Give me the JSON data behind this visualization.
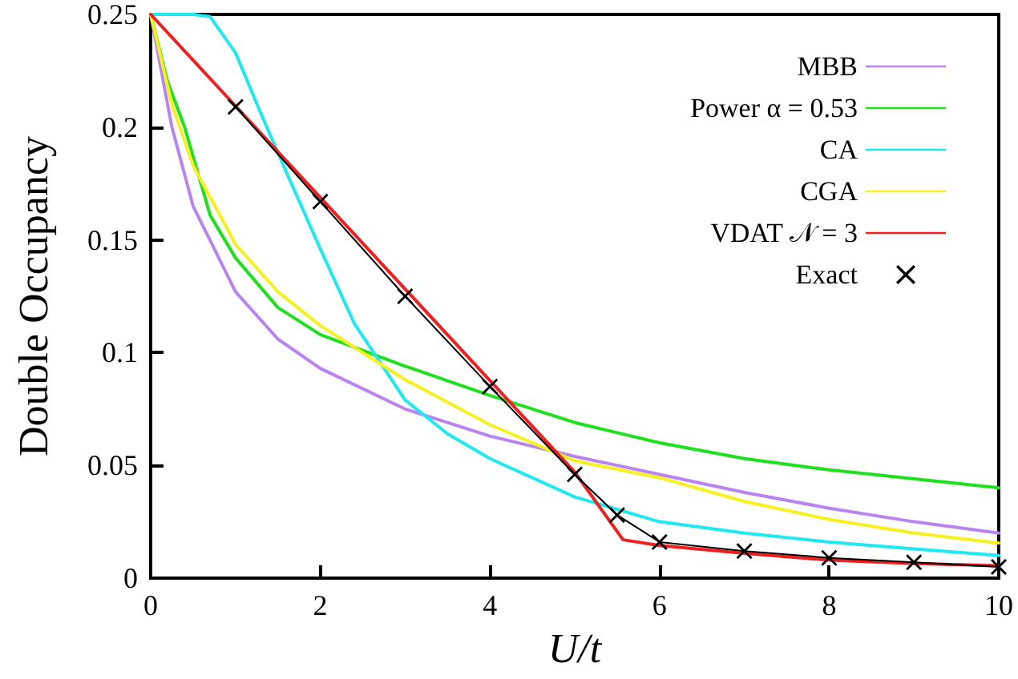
{
  "chart_data": {
    "type": "line",
    "xlabel": "U/t",
    "ylabel": "Double Occupancy",
    "xlim": [
      0,
      10
    ],
    "xticks": [
      0,
      2,
      4,
      6,
      8,
      10
    ],
    "ylim": [
      0,
      0.25
    ],
    "yticks": [
      0,
      0.05,
      0.1,
      0.15,
      0.2,
      0.25
    ],
    "grid": false,
    "legend": "top right",
    "marker": "none",
    "line_style": "solid",
    "series": [
      {
        "name": "MBB",
        "color": "#b983f0",
        "x": [
          0,
          0.25,
          0.5,
          1,
          1.5,
          2,
          3,
          4,
          5,
          6,
          7,
          8,
          9,
          10
        ],
        "values": [
          0.25,
          0.2,
          0.165,
          0.127,
          0.106,
          0.093,
          0.075,
          0.063,
          0.054,
          0.046,
          0.038,
          0.031,
          0.025,
          0.02
        ]
      },
      {
        "name": "Power α = 0.53",
        "color": "#1ee01e",
        "x": [
          0,
          0.2,
          0.4,
          0.7,
          1,
          1.5,
          2,
          3,
          4,
          5,
          6,
          7,
          8,
          9,
          10
        ],
        "values": [
          0.25,
          0.22,
          0.2,
          0.161,
          0.142,
          0.12,
          0.108,
          0.094,
          0.081,
          0.069,
          0.06,
          0.053,
          0.048,
          0.044,
          0.04
        ]
      },
      {
        "name": "CA",
        "color": "#1ee8f0",
        "x": [
          0,
          0.5,
          0.7,
          1,
          1.3,
          1.6,
          2,
          2.4,
          3,
          3.5,
          4,
          5,
          6,
          7,
          8,
          9,
          10
        ],
        "values": [
          0.25,
          0.25,
          0.249,
          0.233,
          0.206,
          0.18,
          0.146,
          0.113,
          0.079,
          0.064,
          0.053,
          0.036,
          0.025,
          0.02,
          0.016,
          0.013,
          0.01
        ]
      },
      {
        "name": "CGA",
        "color": "#f5f01e",
        "x": [
          0,
          0.25,
          0.5,
          1,
          1.5,
          2,
          3,
          4,
          5,
          6,
          7,
          8,
          9,
          10
        ],
        "values": [
          0.25,
          0.21,
          0.183,
          0.148,
          0.127,
          0.112,
          0.088,
          0.068,
          0.052,
          0.0445,
          0.034,
          0.026,
          0.02,
          0.0155
        ]
      },
      {
        "name": "VDAT 𝒩 = 3",
        "color": "#f01e1e",
        "x": [
          0,
          5,
          5.57,
          6,
          7,
          8,
          9,
          10
        ],
        "values": [
          0.25,
          0.047,
          0.017,
          0.0145,
          0.011,
          0.008,
          0.0065,
          0.0055
        ]
      },
      {
        "name": "Exact",
        "color": "#000000",
        "marker": "cross",
        "x": [
          1,
          2,
          3,
          4,
          5,
          5.5,
          6,
          7,
          8,
          9,
          10
        ],
        "values": [
          0.209,
          0.167,
          0.125,
          0.085,
          0.046,
          0.028,
          0.016,
          0.012,
          0.009,
          0.007,
          0.005
        ]
      }
    ]
  }
}
